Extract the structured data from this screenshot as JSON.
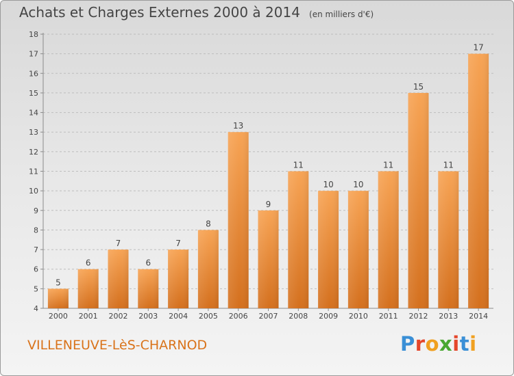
{
  "title": "Achats et Charges Externes 2000 à 2014",
  "unit_note": "(en milliers d'€)",
  "commune": "VILLENEUVE-LèS-CHARNOD",
  "logo": {
    "letters": [
      {
        "char": "P",
        "color": "#3a8fd6"
      },
      {
        "char": "r",
        "color": "#e4462b"
      },
      {
        "char": "o",
        "color": "#f0a020"
      },
      {
        "char": "x",
        "color": "#4aa832"
      },
      {
        "char": "i",
        "color": "#e4462b"
      },
      {
        "char": "t",
        "color": "#3a8fd6"
      },
      {
        "char": "i",
        "color": "#f0a020"
      }
    ]
  },
  "colors": {
    "bar_top": "#f7a455",
    "bar_bottom": "#d4701e",
    "grid": "#bdbdbd",
    "axis": "#8a8a8a",
    "text": "#444444",
    "commune": "#d9731a"
  },
  "chart_data": {
    "type": "bar",
    "categories": [
      "2000",
      "2001",
      "2002",
      "2003",
      "2004",
      "2005",
      "2006",
      "2007",
      "2008",
      "2009",
      "2010",
      "2011",
      "2012",
      "2013",
      "2014"
    ],
    "values": [
      5,
      6,
      7,
      6,
      7,
      8,
      13,
      9,
      11,
      10,
      10,
      11,
      15,
      11,
      17
    ],
    "data_labels": [
      "5",
      "6",
      "7",
      "6",
      "7",
      "8",
      "13",
      "9",
      "11",
      "10",
      "10",
      "11",
      "15",
      "11",
      "17"
    ],
    "ylim": [
      4,
      18
    ],
    "yticks": [
      4,
      5,
      6,
      7,
      8,
      9,
      10,
      11,
      12,
      13,
      14,
      15,
      16,
      17,
      18
    ],
    "ytick_labels": [
      "4",
      "5",
      "6",
      "7",
      "8",
      "9",
      "10",
      "11",
      "12",
      "13",
      "14",
      "15",
      "16",
      "17",
      "18"
    ],
    "grid": true,
    "xlabel": "",
    "ylabel": ""
  }
}
